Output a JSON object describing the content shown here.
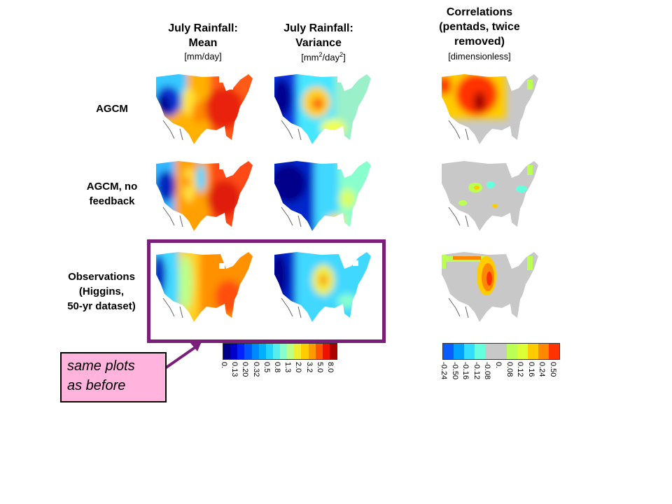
{
  "columns": {
    "mean": {
      "line1": "July Rainfall:",
      "line2": "Mean",
      "units": "[mm/day]"
    },
    "variance": {
      "line1": "July Rainfall:",
      "line2": "Variance",
      "units_pre": "[mm",
      "units_sup1": "2",
      "units_mid": "/day",
      "units_sup2": "2",
      "units_post": "]"
    },
    "corr": {
      "line1": "Correlations",
      "line2": "(pentads, twice",
      "line3": "removed)",
      "units": "[dimensionless]"
    }
  },
  "rows": {
    "agcm": {
      "line1": "AGCM"
    },
    "nofeedback": {
      "line1": "AGCM, no",
      "line2": "feedback"
    },
    "obs": {
      "line1": "Observations",
      "line2": "(Higgins,",
      "line3": "50-yr dataset)"
    }
  },
  "note": {
    "line1": "same plots",
    "line2": "as before"
  },
  "rain_colorbar": {
    "colors": [
      "#00008b",
      "#0000cd",
      "#0022ff",
      "#0055ff",
      "#0088ff",
      "#00b0ff",
      "#22d4ff",
      "#55eeee",
      "#88ffcc",
      "#bbff88",
      "#eeee33",
      "#ffcc00",
      "#ff9900",
      "#ff5500",
      "#ee1100",
      "#aa0000"
    ],
    "ticks": [
      "0.",
      "0.13",
      "0.20",
      "0.32",
      "0.5",
      "0.8",
      "1.3",
      "2.0",
      "3.2",
      "5.0",
      "8.0"
    ]
  },
  "corr_colorbar": {
    "colors": [
      "#0a5cff",
      "#00a0ff",
      "#33ddff",
      "#66ffdd",
      "#c8c8c8",
      "#c8c8c8",
      "#bbff55",
      "#ddff33",
      "#ffcc00",
      "#ff8800",
      "#ff3300"
    ],
    "ticks": [
      "-0.24",
      "-0.50",
      "-0.16",
      "-0.12",
      "-0.08",
      "0.",
      "0.08",
      "0.12",
      "0.16",
      "0.24",
      "0.50"
    ]
  }
}
